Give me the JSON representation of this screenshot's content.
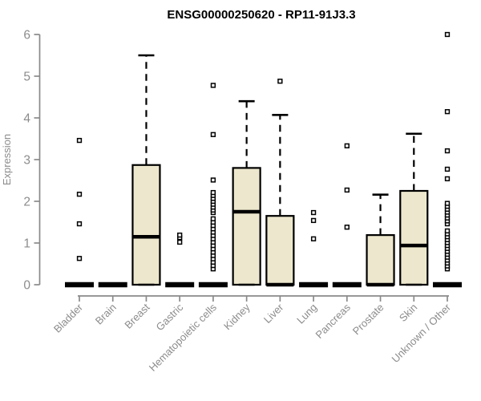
{
  "title": "ENSG00000250620 - RP11-91J3.3",
  "colors": {
    "box_fill": "#EDE8CD",
    "box_stroke": "#000000",
    "axis": "#8A8A8A",
    "tick_label": "#8C8C8C",
    "title": "#000000",
    "outlier_fill": "#FFFFFF"
  },
  "chart_data": {
    "type": "box",
    "title": "ENSG00000250620 - RP11-91J3.3",
    "xlabel": "",
    "ylabel": "Expression",
    "ylim": [
      0,
      6
    ],
    "yticks": [
      0,
      1,
      2,
      3,
      4,
      5,
      6
    ],
    "x_tick_rotation": 45,
    "grid": false,
    "legend": false,
    "categories": [
      "Bladder",
      "Brain",
      "Breast",
      "Gastric",
      "Hematopoietic cells",
      "Kidney",
      "Liver",
      "Lung",
      "Pancreas",
      "Prostate",
      "Skin",
      "Unknown / Other"
    ],
    "series": [
      {
        "category": "Bladder",
        "q1": 0,
        "median": 0,
        "q3": 0,
        "whisker_low": 0,
        "whisker_high": 0,
        "outliers": [
          0.63,
          1.46,
          2.17,
          3.46
        ]
      },
      {
        "category": "Brain",
        "q1": 0,
        "median": 0,
        "q3": 0,
        "whisker_low": 0,
        "whisker_high": 0,
        "outliers": []
      },
      {
        "category": "Breast",
        "q1": 0,
        "median": 1.15,
        "q3": 2.87,
        "whisker_low": 0,
        "whisker_high": 5.5,
        "outliers": []
      },
      {
        "category": "Gastric",
        "q1": 0,
        "median": 0,
        "q3": 0,
        "whisker_low": 0,
        "whisker_high": 0,
        "outliers": [
          1.02,
          1.13,
          1.19
        ]
      },
      {
        "category": "Hematopoietic cells",
        "q1": 0,
        "median": 0,
        "q3": 0,
        "whisker_low": 0,
        "whisker_high": 0,
        "outliers": [
          0.38,
          0.46,
          0.54,
          0.62,
          0.7,
          0.78,
          0.86,
          0.94,
          1.02,
          1.1,
          1.18,
          1.26,
          1.34,
          1.42,
          1.5,
          1.58,
          1.73,
          1.79,
          1.86,
          1.93,
          2.0,
          2.07,
          2.14,
          2.21,
          2.51,
          3.6,
          4.78
        ]
      },
      {
        "category": "Kidney",
        "q1": 0,
        "median": 1.75,
        "q3": 2.8,
        "whisker_low": 0,
        "whisker_high": 4.4,
        "outliers": []
      },
      {
        "category": "Liver",
        "q1": 0,
        "median": 0,
        "q3": 1.65,
        "whisker_low": 0,
        "whisker_high": 4.07,
        "outliers": [
          4.88
        ]
      },
      {
        "category": "Lung",
        "q1": 0,
        "median": 0,
        "q3": 0,
        "whisker_low": 0,
        "whisker_high": 0,
        "outliers": [
          1.1,
          1.54,
          1.73
        ]
      },
      {
        "category": "Pancreas",
        "q1": 0,
        "median": 0,
        "q3": 0,
        "whisker_low": 0,
        "whisker_high": 0,
        "outliers": [
          1.38,
          2.27,
          3.33
        ]
      },
      {
        "category": "Prostate",
        "q1": 0,
        "median": 0,
        "q3": 1.19,
        "whisker_low": 0,
        "whisker_high": 2.16,
        "outliers": []
      },
      {
        "category": "Skin",
        "q1": 0,
        "median": 0.94,
        "q3": 2.25,
        "whisker_low": 0,
        "whisker_high": 3.62,
        "outliers": []
      },
      {
        "category": "Unknown / Other",
        "q1": 0,
        "median": 0,
        "q3": 0,
        "whisker_low": 0,
        "whisker_high": 0,
        "outliers": [
          0.38,
          0.45,
          0.52,
          0.59,
          0.66,
          0.73,
          0.8,
          0.87,
          0.94,
          1.01,
          1.08,
          1.15,
          1.22,
          1.29,
          1.46,
          1.53,
          1.6,
          1.67,
          1.74,
          1.81,
          1.88,
          1.95,
          2.54,
          2.77,
          3.21,
          4.15,
          6.0
        ]
      }
    ]
  }
}
